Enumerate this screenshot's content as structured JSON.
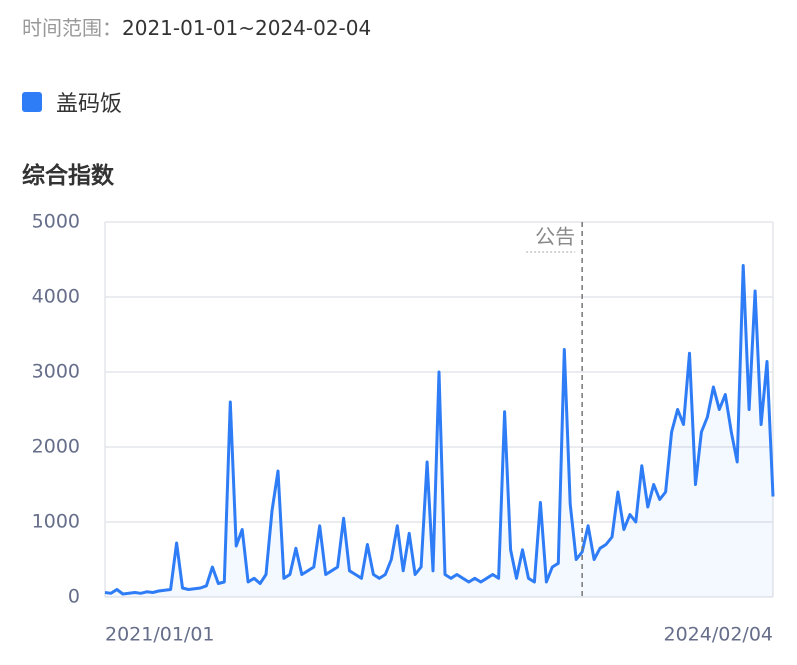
{
  "header": {
    "range_label": "时间范围：",
    "range_value": "2021-01-01~2024-02-04"
  },
  "chart_data": {
    "type": "line",
    "title": "综合指数",
    "categories": [
      "2021/01/01",
      null,
      null,
      null,
      null,
      null,
      null,
      null,
      null,
      null,
      null,
      null,
      null,
      null,
      null,
      null,
      null,
      null,
      null,
      null,
      null,
      null,
      null,
      null,
      null,
      null,
      null,
      null,
      null,
      null,
      null,
      null,
      null,
      null,
      null,
      null,
      null,
      null,
      null,
      null,
      null,
      null,
      null,
      null,
      null,
      null,
      null,
      null,
      null,
      null,
      null,
      null,
      null,
      null,
      null,
      null,
      null,
      null,
      null,
      null,
      null,
      null,
      null,
      null,
      null,
      null,
      null,
      null,
      null,
      null,
      null,
      null,
      null,
      null,
      null,
      null,
      null,
      null,
      null,
      null,
      null,
      null,
      null,
      null,
      null,
      null,
      null,
      null,
      null,
      null,
      null,
      null,
      null,
      null,
      null,
      null,
      null,
      null,
      null,
      null,
      null,
      null,
      null,
      null,
      null,
      null,
      null,
      null,
      null,
      null,
      null,
      null,
      "2024/02/04"
    ],
    "series": [
      {
        "name": "盖码饭",
        "color": "#2e7cf6",
        "values": [
          60,
          50,
          100,
          40,
          50,
          60,
          50,
          70,
          60,
          80,
          90,
          100,
          720,
          120,
          100,
          110,
          120,
          150,
          400,
          180,
          200,
          2600,
          680,
          900,
          200,
          250,
          180,
          300,
          1150,
          1680,
          250,
          300,
          650,
          300,
          350,
          400,
          950,
          300,
          350,
          400,
          1050,
          350,
          300,
          250,
          700,
          300,
          250,
          300,
          500,
          950,
          350,
          850,
          300,
          400,
          1800,
          350,
          3000,
          300,
          250,
          300,
          250,
          200,
          250,
          200,
          250,
          300,
          250,
          2470,
          630,
          250,
          630,
          250,
          200,
          1260,
          200,
          400,
          450,
          3300,
          1240,
          500,
          600,
          950,
          500,
          650,
          700,
          800,
          1400,
          900,
          1100,
          1000,
          1750,
          1200,
          1500,
          1300,
          1400,
          2200,
          2500,
          2300,
          3250,
          1500,
          2200,
          2400,
          2800,
          2500,
          2700,
          2200,
          1800,
          4420,
          2500,
          4080,
          2300,
          3140,
          1340
        ]
      }
    ],
    "ylim": [
      0,
      5000
    ],
    "yticks": [
      0,
      1000,
      2000,
      3000,
      4000,
      5000
    ],
    "grid": true,
    "annotations": [
      {
        "text": "公告",
        "index": 80
      }
    ]
  }
}
